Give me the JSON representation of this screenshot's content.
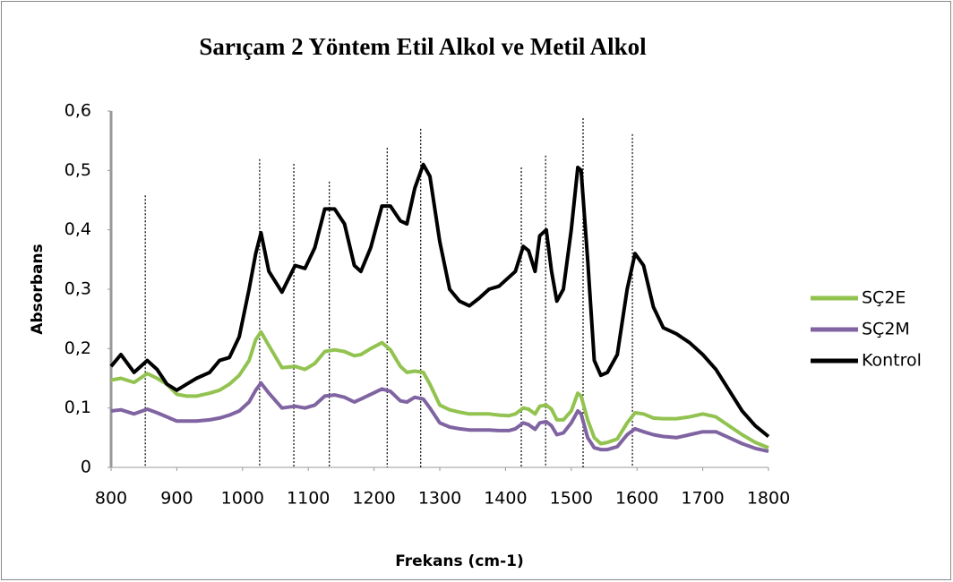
{
  "chart_data": {
    "type": "line",
    "title": "Sarıçam 2 Yöntem Etil Alkol ve Metil Alkol",
    "xlabel": "Frekans (cm-1)",
    "ylabel": "Absorbans",
    "x": [
      800,
      815,
      835,
      855,
      870,
      885,
      900,
      915,
      930,
      950,
      965,
      980,
      995,
      1010,
      1020,
      1028,
      1040,
      1060,
      1080,
      1095,
      1110,
      1125,
      1140,
      1155,
      1170,
      1180,
      1195,
      1212,
      1225,
      1240,
      1250,
      1262,
      1275,
      1285,
      1300,
      1315,
      1330,
      1345,
      1360,
      1375,
      1390,
      1405,
      1415,
      1427,
      1435,
      1445,
      1452,
      1462,
      1470,
      1478,
      1488,
      1500,
      1510,
      1515,
      1525,
      1535,
      1545,
      1555,
      1570,
      1585,
      1597,
      1610,
      1625,
      1640,
      1660,
      1680,
      1700,
      1720,
      1740,
      1760,
      1780,
      1800
    ],
    "series": [
      {
        "name": "SÇ2E",
        "color": "#92c350",
        "values": [
          0.147,
          0.15,
          0.143,
          0.158,
          0.15,
          0.14,
          0.123,
          0.12,
          0.12,
          0.125,
          0.13,
          0.14,
          0.155,
          0.18,
          0.215,
          0.228,
          0.205,
          0.168,
          0.17,
          0.165,
          0.175,
          0.195,
          0.198,
          0.195,
          0.188,
          0.19,
          0.2,
          0.21,
          0.198,
          0.17,
          0.16,
          0.162,
          0.16,
          0.14,
          0.105,
          0.097,
          0.093,
          0.09,
          0.09,
          0.09,
          0.088,
          0.087,
          0.09,
          0.1,
          0.098,
          0.09,
          0.103,
          0.105,
          0.098,
          0.08,
          0.08,
          0.095,
          0.125,
          0.12,
          0.08,
          0.05,
          0.04,
          0.042,
          0.048,
          0.075,
          0.092,
          0.09,
          0.083,
          0.082,
          0.082,
          0.085,
          0.09,
          0.085,
          0.07,
          0.055,
          0.042,
          0.033
        ]
      },
      {
        "name": "SÇ2M",
        "color": "#8064a2",
        "values": [
          0.095,
          0.097,
          0.09,
          0.098,
          0.092,
          0.085,
          0.078,
          0.078,
          0.078,
          0.08,
          0.083,
          0.088,
          0.095,
          0.11,
          0.13,
          0.142,
          0.125,
          0.1,
          0.103,
          0.1,
          0.105,
          0.12,
          0.122,
          0.118,
          0.11,
          0.115,
          0.123,
          0.132,
          0.128,
          0.112,
          0.11,
          0.118,
          0.115,
          0.1,
          0.075,
          0.068,
          0.065,
          0.063,
          0.063,
          0.063,
          0.062,
          0.062,
          0.065,
          0.075,
          0.072,
          0.064,
          0.075,
          0.077,
          0.07,
          0.055,
          0.058,
          0.075,
          0.095,
          0.09,
          0.05,
          0.033,
          0.03,
          0.03,
          0.035,
          0.055,
          0.065,
          0.06,
          0.055,
          0.052,
          0.05,
          0.055,
          0.06,
          0.06,
          0.05,
          0.04,
          0.032,
          0.027
        ]
      },
      {
        "name": "Kontrol",
        "color": "#000000",
        "values": [
          0.17,
          0.19,
          0.16,
          0.18,
          0.165,
          0.14,
          0.13,
          0.14,
          0.15,
          0.16,
          0.18,
          0.185,
          0.22,
          0.3,
          0.36,
          0.395,
          0.33,
          0.295,
          0.34,
          0.335,
          0.37,
          0.435,
          0.435,
          0.41,
          0.34,
          0.33,
          0.37,
          0.44,
          0.44,
          0.415,
          0.41,
          0.47,
          0.51,
          0.49,
          0.38,
          0.3,
          0.28,
          0.272,
          0.285,
          0.3,
          0.305,
          0.32,
          0.33,
          0.372,
          0.365,
          0.33,
          0.39,
          0.4,
          0.33,
          0.28,
          0.3,
          0.4,
          0.505,
          0.5,
          0.35,
          0.18,
          0.155,
          0.16,
          0.19,
          0.3,
          0.36,
          0.34,
          0.27,
          0.235,
          0.225,
          0.21,
          0.19,
          0.165,
          0.13,
          0.095,
          0.07,
          0.052
        ]
      }
    ],
    "vlines": [
      852,
      1026,
      1078,
      1132,
      1220,
      1271,
      1424,
      1461,
      1518,
      1593
    ],
    "vline_tops": [
      0.458,
      0.519,
      0.511,
      0.481,
      0.538,
      0.57,
      0.505,
      0.525,
      0.588,
      0.561
    ],
    "xlim": [
      800,
      1800
    ],
    "xticks": [
      800,
      900,
      1000,
      1100,
      1200,
      1300,
      1400,
      1500,
      1600,
      1700,
      1800
    ],
    "ylim": [
      0,
      0.6
    ],
    "yticks": [
      0,
      {
        "value": 0.1,
        "label": "0,1"
      },
      {
        "value": 0.2,
        "label": "0,2"
      },
      {
        "value": 0.3,
        "label": "0,3"
      },
      {
        "value": 0.4,
        "label": "0,4"
      },
      {
        "value": 0.5,
        "label": "0,5"
      },
      {
        "value": 0.6,
        "label": "0,6"
      }
    ],
    "legend": "right"
  }
}
